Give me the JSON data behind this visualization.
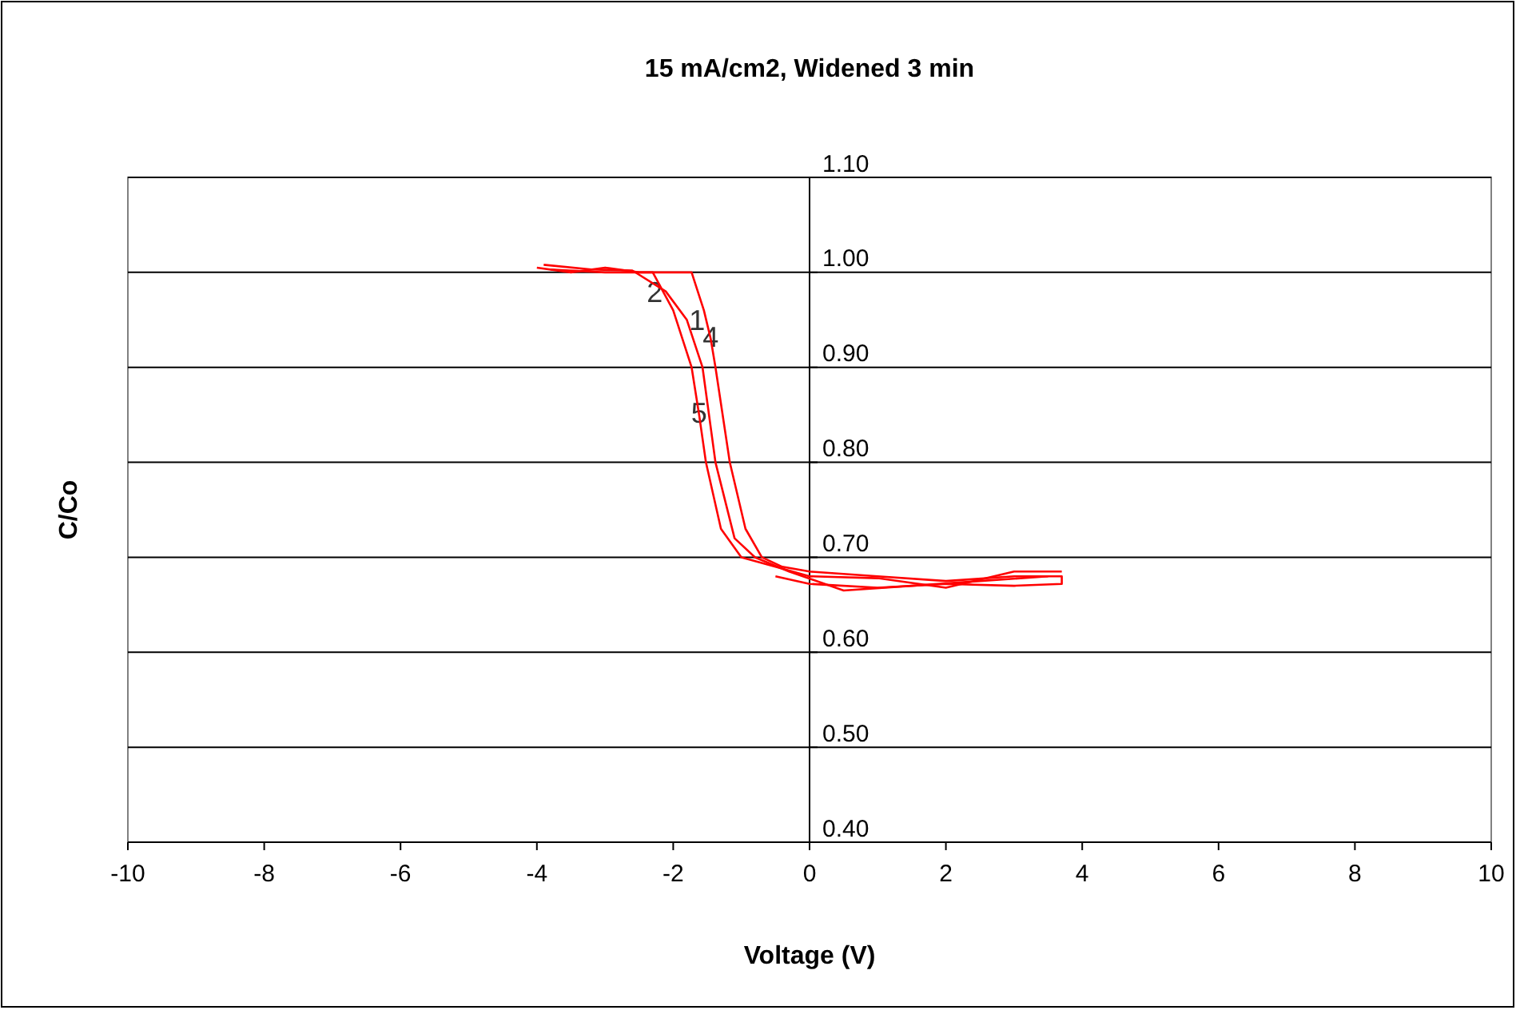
{
  "chart_data": {
    "type": "line",
    "title": "15 mA/cm2, Widened 3 min",
    "xlabel": "Voltage (V)",
    "ylabel": "C/Co",
    "xlim": [
      -10,
      10
    ],
    "xticks": [
      -10,
      -8,
      -6,
      -4,
      -2,
      0,
      2,
      4,
      6,
      8,
      10
    ],
    "ylim": [
      0.4,
      1.1
    ],
    "yticks": [
      {
        "value": 0.4,
        "label": "0.40"
      },
      {
        "value": 0.5,
        "label": "0.50"
      },
      {
        "value": 0.6,
        "label": "0.60"
      },
      {
        "value": 0.7,
        "label": "0.70"
      },
      {
        "value": 0.8,
        "label": "0.80"
      },
      {
        "value": 0.9,
        "label": "0.90"
      },
      {
        "value": 1.0,
        "label": "1.00"
      },
      {
        "value": 1.1,
        "label": "1.10"
      }
    ],
    "grid": "y",
    "marker": "none",
    "line_style": "solid",
    "series": [
      {
        "color": "#ff0000",
        "x": [
          -4,
          -3.5,
          -3,
          -2.5,
          -2,
          -1.73,
          -1.55,
          -1.45,
          -1.38,
          -1.17,
          -0.94,
          -0.7,
          -0.4,
          0,
          1,
          2,
          3,
          3.7,
          3.7,
          3,
          2,
          1,
          0,
          -0.5
        ],
        "values": [
          1.005,
          1.0,
          1.005,
          1.0,
          1.0,
          1.0,
          0.96,
          0.93,
          0.9,
          0.8,
          0.73,
          0.7,
          0.69,
          0.685,
          0.68,
          0.675,
          0.68,
          0.68,
          0.672,
          0.67,
          0.672,
          0.668,
          0.672,
          0.68
        ]
      },
      {
        "color": "#ff0000",
        "x": [
          -3.9,
          -3.2,
          -2.6,
          -2.11,
          -1.8,
          -1.57,
          -1.38,
          -1.1,
          -0.8,
          -0.3,
          0.5,
          1.5,
          2.5,
          3.5
        ],
        "values": [
          1.008,
          1.003,
          1.002,
          0.98,
          0.95,
          0.9,
          0.8,
          0.72,
          0.7,
          0.685,
          0.665,
          0.67,
          0.675,
          0.68
        ]
      },
      {
        "color": "#ff0000",
        "x": [
          -3.8,
          -3,
          -2.3,
          -2.0,
          -1.73,
          -1.62,
          -1.52,
          -1.3,
          -1.0,
          -0.5,
          0,
          1,
          2,
          3,
          3.7
        ],
        "values": [
          1.003,
          1.0,
          1.0,
          0.96,
          0.9,
          0.85,
          0.8,
          0.73,
          0.7,
          0.69,
          0.68,
          0.678,
          0.668,
          0.685,
          0.685
        ]
      }
    ],
    "annotations": [
      {
        "text": "1",
        "x": -1.65,
        "y": 0.947
      },
      {
        "text": "4",
        "x": -1.45,
        "y": 0.93
      },
      {
        "text": "2",
        "x": -2.27,
        "y": 0.977
      },
      {
        "text": "5",
        "x": -1.62,
        "y": 0.85
      }
    ]
  }
}
